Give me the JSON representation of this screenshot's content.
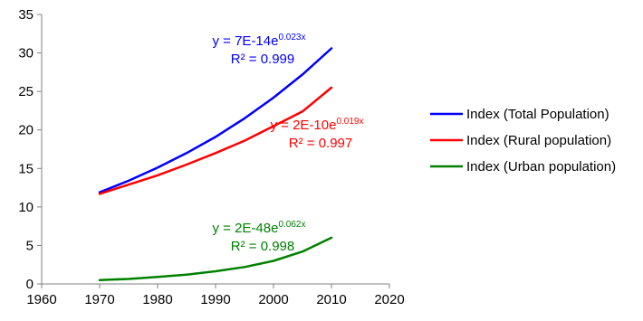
{
  "chart_data": {
    "type": "line",
    "title": "",
    "xlabel": "",
    "ylabel": "",
    "xlim": [
      1960,
      2020
    ],
    "ylim": [
      0,
      35
    ],
    "xticks": [
      1960,
      1970,
      1980,
      1990,
      2000,
      2010,
      2020
    ],
    "yticks": [
      0,
      5,
      10,
      15,
      20,
      25,
      30,
      35
    ],
    "grid": false,
    "legend_position": "right",
    "x": [
      1970,
      1975,
      1980,
      1985,
      1990,
      1995,
      2000,
      2005,
      2010
    ],
    "series": [
      {
        "name": "Index (Total Population)",
        "color": "#0000ff",
        "values": [
          11.9,
          13.4,
          15.1,
          17.0,
          19.1,
          21.5,
          24.2,
          27.2,
          30.6
        ],
        "equation": {
          "prefix": "y = 7E-14e",
          "exponent": "0.023x",
          "r2": "R² = 0.999"
        }
      },
      {
        "name": "Index (Rural population)",
        "color": "#ff0000",
        "values": [
          11.7,
          12.9,
          14.1,
          15.5,
          17.0,
          18.6,
          20.5,
          22.4,
          25.5
        ],
        "equation": {
          "prefix": "y = 2E-10e",
          "exponent": "0.019x",
          "r2": "R² = 0.997"
        }
      },
      {
        "name": "Index (Urban population)",
        "color": "#008000",
        "values": [
          0.5,
          0.65,
          0.9,
          1.2,
          1.65,
          2.2,
          3.0,
          4.2,
          6.0
        ],
        "equation": {
          "prefix": "y = 2E-48e",
          "exponent": "0.062x",
          "r2": "R² = 0.998"
        }
      }
    ]
  }
}
